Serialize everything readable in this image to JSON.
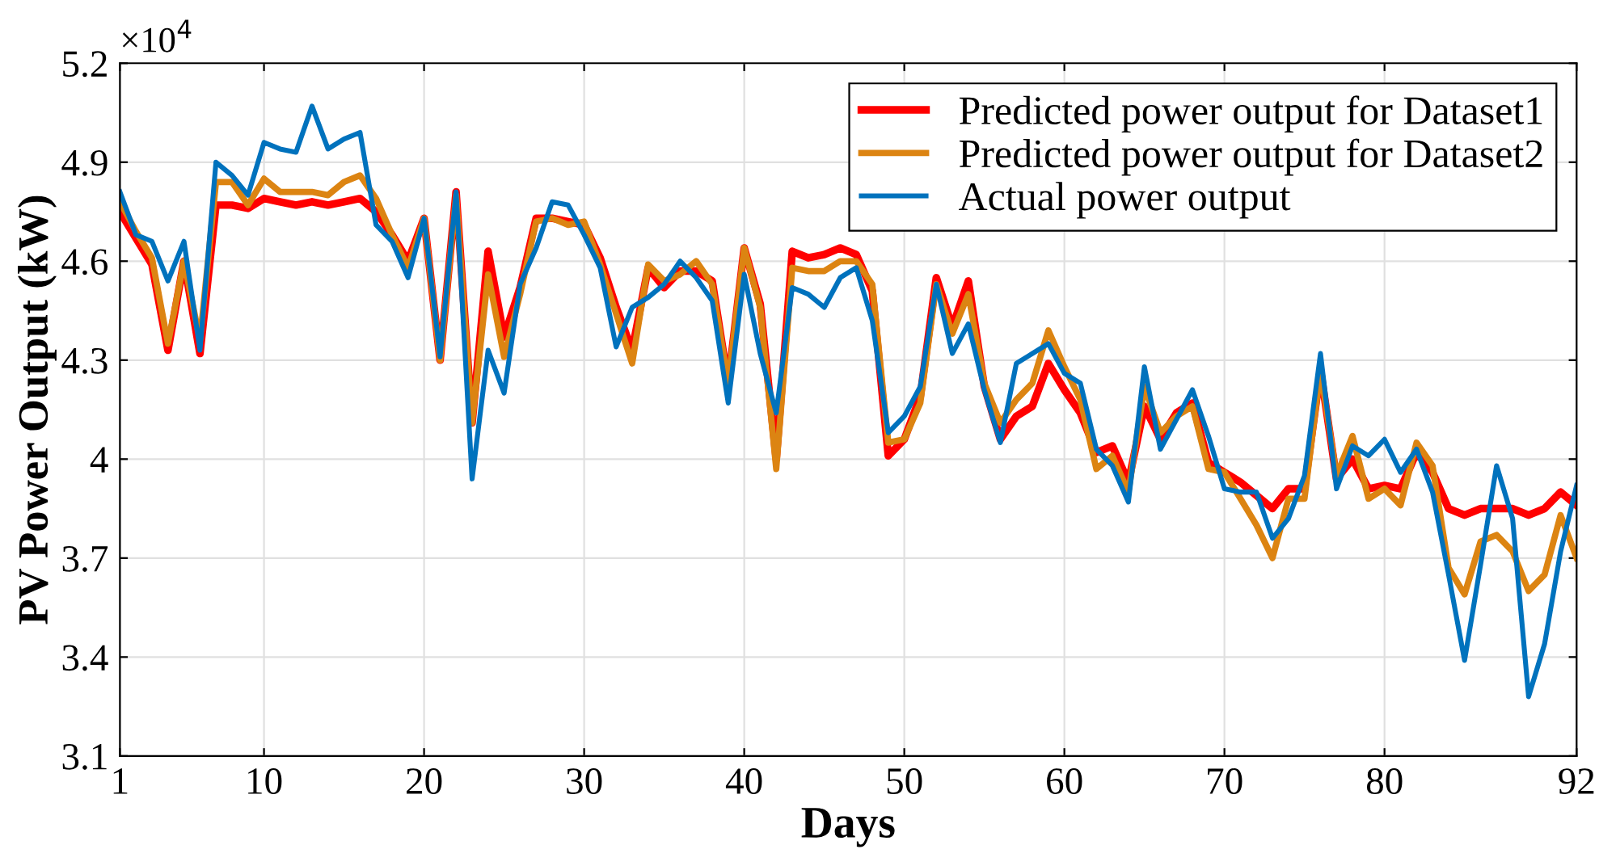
{
  "chart_data": {
    "type": "line",
    "xlabel": "Days",
    "ylabel": "PV Power Output (kW)",
    "annotations": [
      "×10$^{4}$"
    ],
    "x": [
      1,
      2,
      3,
      4,
      5,
      6,
      7,
      8,
      9,
      10,
      11,
      12,
      13,
      14,
      15,
      16,
      17,
      18,
      19,
      20,
      21,
      22,
      23,
      24,
      25,
      26,
      27,
      28,
      29,
      30,
      31,
      32,
      33,
      34,
      35,
      36,
      37,
      38,
      39,
      40,
      41,
      42,
      43,
      44,
      45,
      46,
      47,
      48,
      49,
      50,
      51,
      52,
      53,
      54,
      55,
      56,
      57,
      58,
      59,
      60,
      61,
      62,
      63,
      64,
      65,
      66,
      67,
      68,
      69,
      70,
      71,
      72,
      73,
      74,
      75,
      76,
      77,
      78,
      79,
      80,
      81,
      82,
      83,
      84,
      85,
      86,
      87,
      88,
      89,
      90,
      91,
      92
    ],
    "series": [
      {
        "name": "Predicted power output for Dataset1",
        "color": "#ff0000",
        "values": [
          4.75,
          4.67,
          4.59,
          4.33,
          4.6,
          4.32,
          4.77,
          4.77,
          4.76,
          4.79,
          4.78,
          4.77,
          4.78,
          4.77,
          4.78,
          4.79,
          4.75,
          4.68,
          4.6,
          4.73,
          4.3,
          4.81,
          4.11,
          4.63,
          4.37,
          4.52,
          4.73,
          4.73,
          4.72,
          4.71,
          4.61,
          4.46,
          4.33,
          4.58,
          4.52,
          4.57,
          4.57,
          4.54,
          4.23,
          4.64,
          4.47,
          4.0,
          4.63,
          4.61,
          4.62,
          4.64,
          4.62,
          4.51,
          4.01,
          4.06,
          4.19,
          4.55,
          4.4,
          4.54,
          4.22,
          4.06,
          4.13,
          4.16,
          4.29,
          4.21,
          4.14,
          4.02,
          4.04,
          3.93,
          4.16,
          4.06,
          4.14,
          4.17,
          3.99,
          3.96,
          3.93,
          3.89,
          3.85,
          3.91,
          3.91,
          4.27,
          3.94,
          4.0,
          3.91,
          3.92,
          3.91,
          4.02,
          3.96,
          3.85,
          3.83,
          3.85,
          3.85,
          3.85,
          3.83,
          3.85,
          3.9,
          3.86
        ]
      },
      {
        "name": "Predicted power output for Dataset2",
        "color": "#dc8412",
        "values": [
          4.78,
          4.69,
          4.61,
          4.35,
          4.6,
          4.36,
          4.84,
          4.84,
          4.77,
          4.85,
          4.81,
          4.81,
          4.81,
          4.8,
          4.84,
          4.86,
          4.79,
          4.68,
          4.58,
          4.73,
          4.3,
          4.8,
          4.11,
          4.56,
          4.31,
          4.5,
          4.72,
          4.73,
          4.71,
          4.72,
          4.59,
          4.44,
          4.29,
          4.59,
          4.54,
          4.56,
          4.6,
          4.53,
          4.23,
          4.64,
          4.46,
          3.97,
          4.58,
          4.57,
          4.57,
          4.6,
          4.6,
          4.53,
          4.05,
          4.06,
          4.17,
          4.53,
          4.38,
          4.5,
          4.23,
          4.11,
          4.18,
          4.23,
          4.39,
          4.28,
          4.18,
          3.97,
          4.01,
          3.9,
          4.22,
          4.08,
          4.13,
          4.16,
          3.97,
          3.96,
          3.88,
          3.8,
          3.7,
          3.88,
          3.88,
          4.27,
          3.95,
          4.07,
          3.88,
          3.91,
          3.86,
          4.05,
          3.98,
          3.67,
          3.59,
          3.75,
          3.77,
          3.72,
          3.6,
          3.65,
          3.83,
          3.7
        ]
      },
      {
        "name": "Actual power output",
        "color": "#0072bd",
        "values": [
          4.81,
          4.68,
          4.66,
          4.54,
          4.66,
          4.33,
          4.9,
          4.86,
          4.8,
          4.96,
          4.94,
          4.93,
          5.07,
          4.94,
          4.97,
          4.99,
          4.71,
          4.66,
          4.55,
          4.73,
          4.31,
          4.81,
          3.94,
          4.33,
          4.2,
          4.53,
          4.64,
          4.78,
          4.77,
          4.68,
          4.58,
          4.34,
          4.46,
          4.49,
          4.53,
          4.6,
          4.55,
          4.48,
          4.17,
          4.56,
          4.32,
          4.14,
          4.52,
          4.5,
          4.46,
          4.55,
          4.58,
          4.42,
          4.08,
          4.13,
          4.22,
          4.53,
          4.32,
          4.41,
          4.21,
          4.05,
          4.29,
          4.32,
          4.35,
          4.26,
          4.23,
          4.03,
          3.98,
          3.87,
          4.28,
          4.03,
          4.12,
          4.21,
          4.07,
          3.91,
          3.9,
          3.9,
          3.76,
          3.82,
          3.95,
          4.32,
          3.91,
          4.04,
          4.01,
          4.06,
          3.96,
          4.03,
          3.9,
          3.65,
          3.39,
          3.68,
          3.98,
          3.82,
          3.28,
          3.44,
          3.72,
          3.92
        ]
      }
    ],
    "xlim": [
      1,
      92
    ],
    "xticks": [
      1,
      10,
      20,
      30,
      40,
      50,
      60,
      70,
      80,
      92
    ],
    "ylim": [
      3.1,
      5.2
    ],
    "yticks": [
      3.1,
      3.4,
      3.7,
      4,
      4.3,
      4.6,
      4.9,
      5.2
    ],
    "grid": true,
    "legend": "top right",
    "marker": "none",
    "line_style": "solid"
  }
}
